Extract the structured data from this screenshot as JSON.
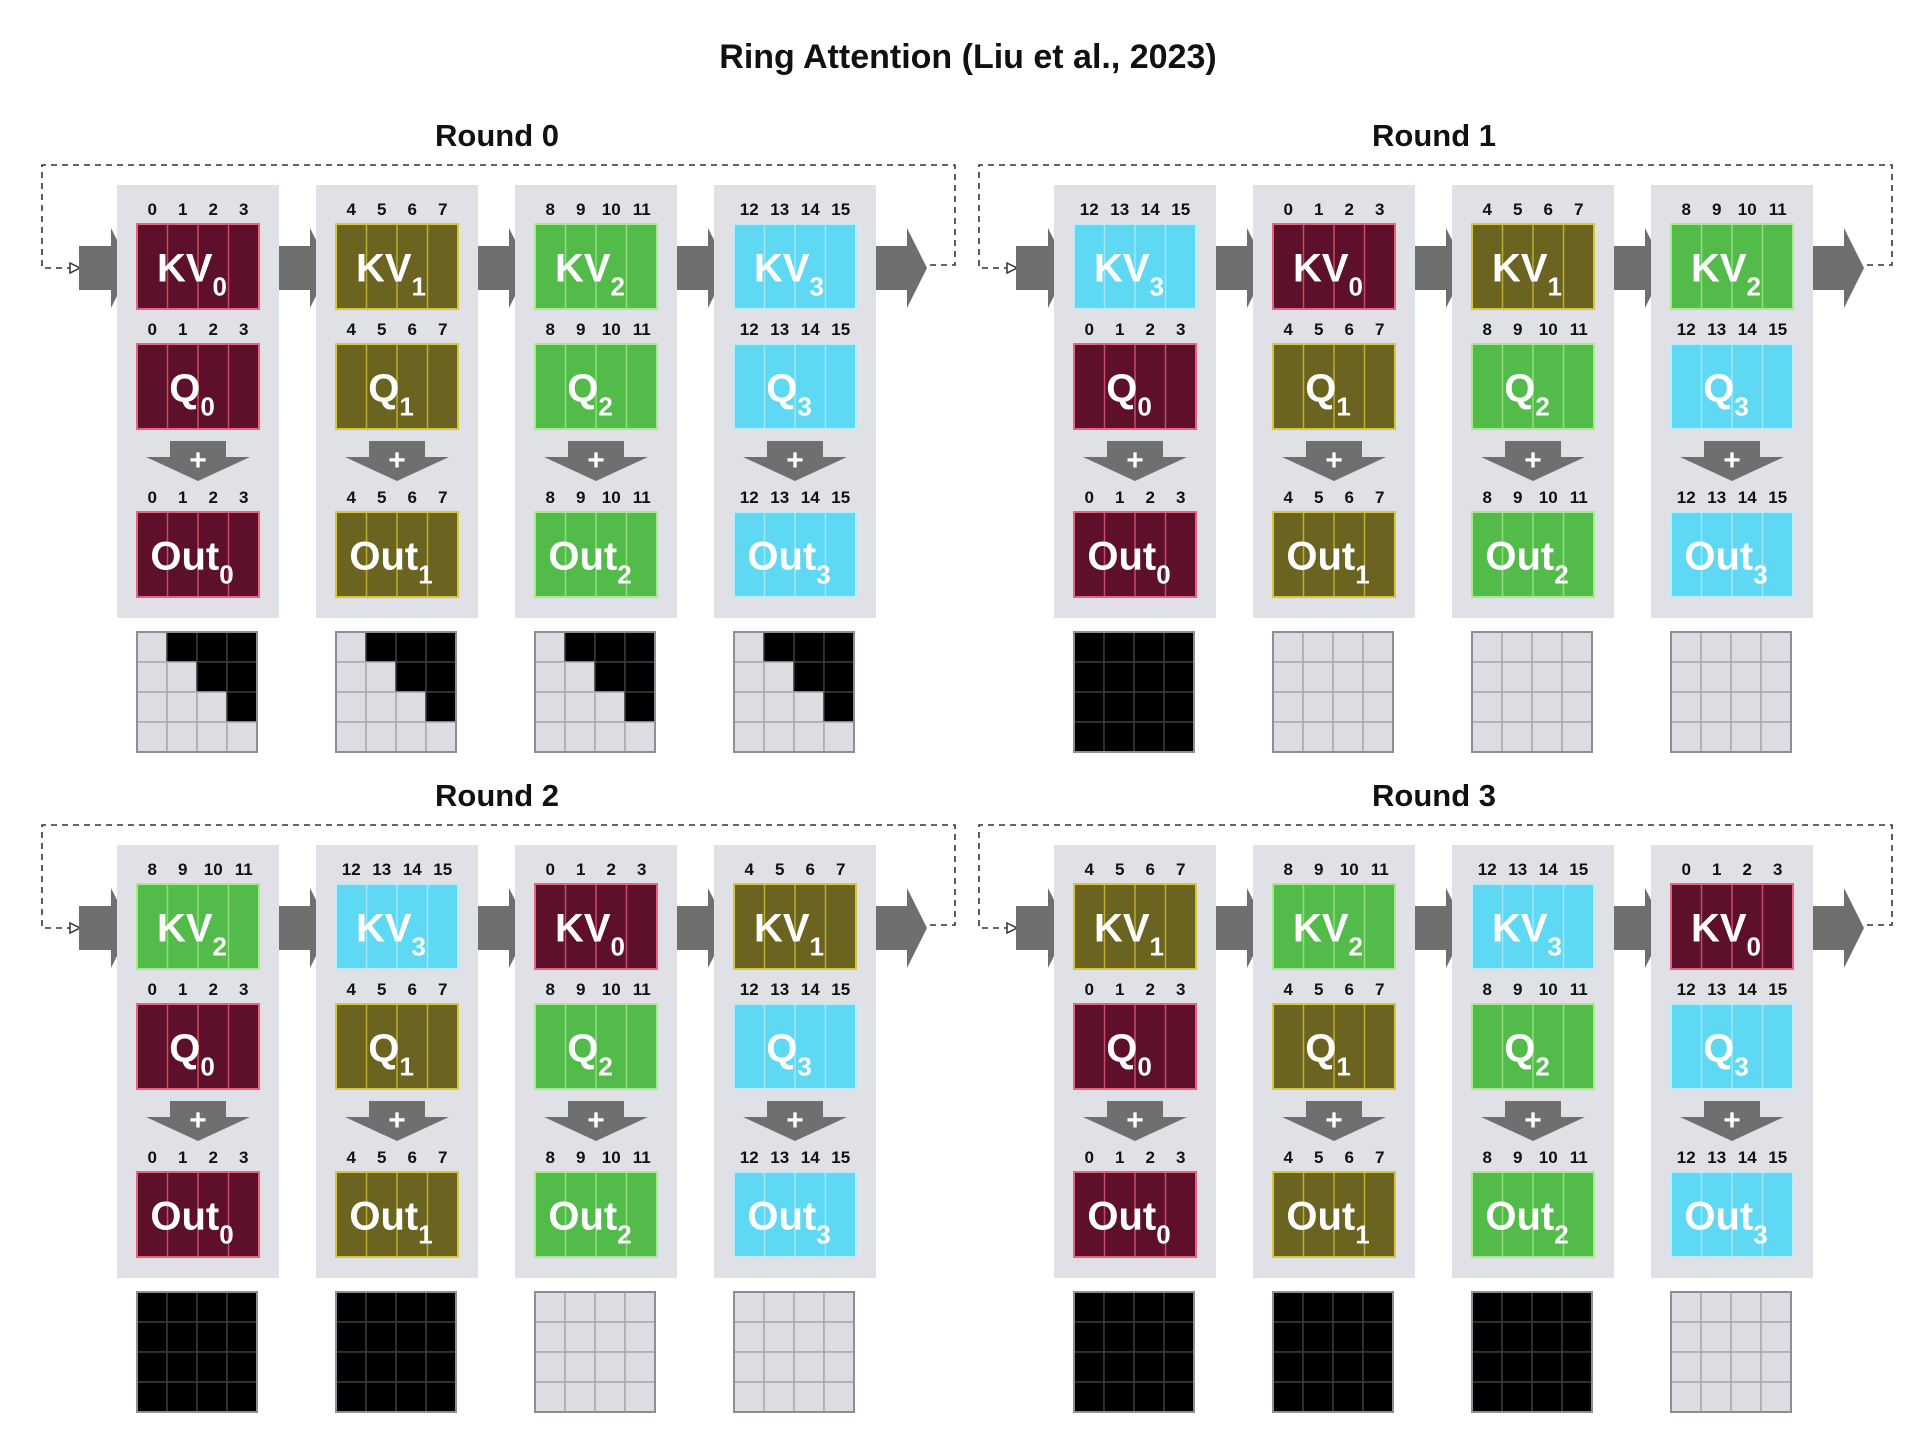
{
  "title": "Ring Attention (Liu et al., 2023)",
  "colors": {
    "c0": {
      "fill": "#5e0f29",
      "edge": "#e8637e"
    },
    "c1": {
      "fill": "#6b6420",
      "edge": "#d8c63a"
    },
    "c2": {
      "fill": "#52bb4a",
      "edge": "#a9ea8d"
    },
    "c3": {
      "fill": "#5fd8f4",
      "edge": "#b6eefc"
    },
    "column_bg": "#dfe1e6",
    "arrow": "#6f6f6f",
    "grid_light": "#dcdde2",
    "grid_dark": "#000000"
  },
  "chunk_positions": {
    "c0": [
      "0",
      "1",
      "2",
      "3"
    ],
    "c1": [
      "4",
      "5",
      "6",
      "7"
    ],
    "c2": [
      "8",
      "9",
      "10",
      "11"
    ],
    "c3": [
      "12",
      "13",
      "14",
      "15"
    ]
  },
  "rounds": [
    {
      "label": "Round 0",
      "columns": [
        {
          "kv": {
            "text": "KV",
            "sub": "0",
            "chunk": "c0"
          },
          "q": {
            "text": "Q",
            "sub": "0",
            "chunk": "c0"
          },
          "plus": "+",
          "out": {
            "text": "Out",
            "sub": "0",
            "chunk": "c0"
          },
          "mask": "diag"
        },
        {
          "kv": {
            "text": "KV",
            "sub": "1",
            "chunk": "c1"
          },
          "q": {
            "text": "Q",
            "sub": "1",
            "chunk": "c1"
          },
          "plus": "+",
          "out": {
            "text": "Out",
            "sub": "1",
            "chunk": "c1"
          },
          "mask": "diag"
        },
        {
          "kv": {
            "text": "KV",
            "sub": "2",
            "chunk": "c2"
          },
          "q": {
            "text": "Q",
            "sub": "2",
            "chunk": "c2"
          },
          "plus": "+",
          "out": {
            "text": "Out",
            "sub": "2",
            "chunk": "c2"
          },
          "mask": "diag"
        },
        {
          "kv": {
            "text": "KV",
            "sub": "3",
            "chunk": "c3"
          },
          "q": {
            "text": "Q",
            "sub": "3",
            "chunk": "c3"
          },
          "plus": "+",
          "out": {
            "text": "Out",
            "sub": "3",
            "chunk": "c3"
          },
          "mask": "diag"
        }
      ]
    },
    {
      "label": "Round 1",
      "columns": [
        {
          "kv": {
            "text": "KV",
            "sub": "3",
            "chunk": "c3"
          },
          "q": {
            "text": "Q",
            "sub": "0",
            "chunk": "c0"
          },
          "plus": "+",
          "out": {
            "text": "Out",
            "sub": "0",
            "chunk": "c0"
          },
          "mask": "full"
        },
        {
          "kv": {
            "text": "KV",
            "sub": "0",
            "chunk": "c0"
          },
          "q": {
            "text": "Q",
            "sub": "1",
            "chunk": "c1"
          },
          "plus": "+",
          "out": {
            "text": "Out",
            "sub": "1",
            "chunk": "c1"
          },
          "mask": "empty"
        },
        {
          "kv": {
            "text": "KV",
            "sub": "1",
            "chunk": "c1"
          },
          "q": {
            "text": "Q",
            "sub": "2",
            "chunk": "c2"
          },
          "plus": "+",
          "out": {
            "text": "Out",
            "sub": "2",
            "chunk": "c2"
          },
          "mask": "empty"
        },
        {
          "kv": {
            "text": "KV",
            "sub": "2",
            "chunk": "c2"
          },
          "q": {
            "text": "Q",
            "sub": "3",
            "chunk": "c3"
          },
          "plus": "+",
          "out": {
            "text": "Out",
            "sub": "3",
            "chunk": "c3"
          },
          "mask": "empty"
        }
      ]
    },
    {
      "label": "Round 2",
      "columns": [
        {
          "kv": {
            "text": "KV",
            "sub": "2",
            "chunk": "c2"
          },
          "q": {
            "text": "Q",
            "sub": "0",
            "chunk": "c0"
          },
          "plus": "+",
          "out": {
            "text": "Out",
            "sub": "0",
            "chunk": "c0"
          },
          "mask": "full"
        },
        {
          "kv": {
            "text": "KV",
            "sub": "3",
            "chunk": "c3"
          },
          "q": {
            "text": "Q",
            "sub": "1",
            "chunk": "c1"
          },
          "plus": "+",
          "out": {
            "text": "Out",
            "sub": "1",
            "chunk": "c1"
          },
          "mask": "full"
        },
        {
          "kv": {
            "text": "KV",
            "sub": "0",
            "chunk": "c0"
          },
          "q": {
            "text": "Q",
            "sub": "2",
            "chunk": "c2"
          },
          "plus": "+",
          "out": {
            "text": "Out",
            "sub": "2",
            "chunk": "c2"
          },
          "mask": "empty"
        },
        {
          "kv": {
            "text": "KV",
            "sub": "1",
            "chunk": "c1"
          },
          "q": {
            "text": "Q",
            "sub": "3",
            "chunk": "c3"
          },
          "plus": "+",
          "out": {
            "text": "Out",
            "sub": "3",
            "chunk": "c3"
          },
          "mask": "empty"
        }
      ]
    },
    {
      "label": "Round 3",
      "columns": [
        {
          "kv": {
            "text": "KV",
            "sub": "1",
            "chunk": "c1"
          },
          "q": {
            "text": "Q",
            "sub": "0",
            "chunk": "c0"
          },
          "plus": "+",
          "out": {
            "text": "Out",
            "sub": "0",
            "chunk": "c0"
          },
          "mask": "full"
        },
        {
          "kv": {
            "text": "KV",
            "sub": "2",
            "chunk": "c2"
          },
          "q": {
            "text": "Q",
            "sub": "1",
            "chunk": "c1"
          },
          "plus": "+",
          "out": {
            "text": "Out",
            "sub": "1",
            "chunk": "c1"
          },
          "mask": "full"
        },
        {
          "kv": {
            "text": "KV",
            "sub": "3",
            "chunk": "c3"
          },
          "q": {
            "text": "Q",
            "sub": "2",
            "chunk": "c2"
          },
          "plus": "+",
          "out": {
            "text": "Out",
            "sub": "2",
            "chunk": "c2"
          },
          "mask": "full"
        },
        {
          "kv": {
            "text": "KV",
            "sub": "0",
            "chunk": "c0"
          },
          "q": {
            "text": "Q",
            "sub": "3",
            "chunk": "c3"
          },
          "plus": "+",
          "out": {
            "text": "Out",
            "sub": "3",
            "chunk": "c3"
          },
          "mask": "empty"
        }
      ]
    }
  ]
}
